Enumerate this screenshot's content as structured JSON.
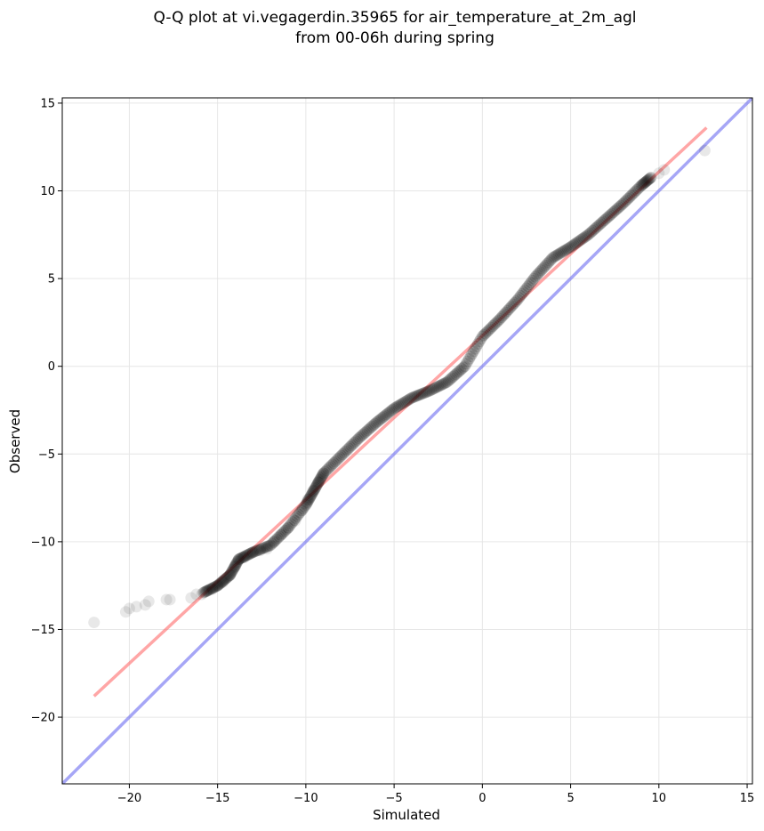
{
  "chart_data": {
    "type": "scatter",
    "title_line1": "Q-Q plot at vi.vegagerdin.35965 for air_temperature_at_2m_agl",
    "title_line2": "from 00-06h during spring",
    "xlabel": "Simulated",
    "ylabel": "Observed",
    "xlim": [
      -23.8,
      15.3
    ],
    "ylim": [
      -23.8,
      15.3
    ],
    "xticks": [
      "−20",
      "−15",
      "−10",
      "−5",
      "0",
      "5",
      "10",
      "15"
    ],
    "xtick_values": [
      -20,
      -15,
      -10,
      -5,
      0,
      5,
      10,
      15
    ],
    "yticks": [
      "−20",
      "−15",
      "−10",
      "−5",
      "0",
      "5",
      "10",
      "15"
    ],
    "ytick_values": [
      -20,
      -15,
      -10,
      -5,
      0,
      5,
      10,
      15
    ],
    "grid": true,
    "point_color": "#000000",
    "fit_line_color": "#ff6b6b",
    "identity_line_color": "#6b6bf0",
    "fit_line": {
      "x": [
        -22.0,
        12.7
      ],
      "y": [
        -18.8,
        13.6
      ]
    },
    "identity_line": {
      "x": [
        -23.8,
        15.3
      ],
      "y": [
        -23.8,
        15.3
      ]
    },
    "curve_knots": [
      [
        -15.8,
        -12.9
      ],
      [
        -15.0,
        -12.5
      ],
      [
        -14.3,
        -11.9
      ],
      [
        -13.8,
        -11.0
      ],
      [
        -13.0,
        -10.6
      ],
      [
        -12.0,
        -10.2
      ],
      [
        -11.0,
        -9.2
      ],
      [
        -10.0,
        -7.9
      ],
      [
        -9.5,
        -7.0
      ],
      [
        -9.0,
        -6.1
      ],
      [
        -8.0,
        -5.1
      ],
      [
        -7.0,
        -4.1
      ],
      [
        -6.0,
        -3.2
      ],
      [
        -5.0,
        -2.4
      ],
      [
        -4.0,
        -1.8
      ],
      [
        -3.0,
        -1.4
      ],
      [
        -2.0,
        -0.9
      ],
      [
        -1.0,
        0.0
      ],
      [
        0.0,
        1.7
      ],
      [
        1.0,
        2.7
      ],
      [
        2.0,
        3.8
      ],
      [
        3.0,
        5.1
      ],
      [
        4.0,
        6.2
      ],
      [
        5.0,
        6.8
      ],
      [
        6.0,
        7.5
      ],
      [
        7.0,
        8.4
      ],
      [
        8.0,
        9.3
      ],
      [
        9.0,
        10.3
      ],
      [
        9.6,
        10.8
      ]
    ],
    "points": [
      [
        -22.0,
        -14.6
      ],
      [
        -20.2,
        -14.0
      ],
      [
        -20.0,
        -13.8
      ],
      [
        -19.6,
        -13.7
      ],
      [
        -19.1,
        -13.6
      ],
      [
        -18.9,
        -13.4
      ],
      [
        -17.9,
        -13.3
      ],
      [
        -17.7,
        -13.3
      ],
      [
        -16.5,
        -13.2
      ],
      [
        -16.2,
        -13.0
      ],
      [
        -15.9,
        -13.0
      ],
      [
        -15.6,
        -12.8
      ],
      [
        -15.3,
        -12.7
      ],
      [
        -15.0,
        -12.5
      ],
      [
        -14.7,
        -12.3
      ],
      [
        -14.3,
        -11.9
      ],
      [
        -14.0,
        -11.4
      ],
      [
        -13.8,
        -11.0
      ],
      [
        -13.5,
        -10.9
      ],
      [
        -13.0,
        -10.6
      ],
      [
        -12.6,
        -10.5
      ],
      [
        -12.2,
        -10.4
      ],
      [
        -11.8,
        -10.0
      ],
      [
        -11.4,
        -9.6
      ],
      [
        -11.0,
        -9.2
      ],
      [
        -10.6,
        -8.8
      ],
      [
        -10.2,
        -8.2
      ],
      [
        -9.9,
        -7.6
      ],
      [
        -9.6,
        -7.1
      ],
      [
        -9.3,
        -6.6
      ],
      [
        -9.0,
        -6.1
      ],
      [
        10.0,
        11.0
      ],
      [
        10.3,
        11.2
      ],
      [
        12.6,
        12.3
      ]
    ]
  }
}
